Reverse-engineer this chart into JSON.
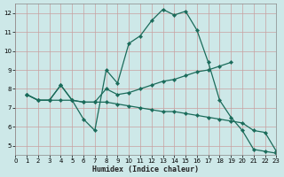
{
  "xlabel": "Humidex (Indice chaleur)",
  "bg_color": "#cde8e8",
  "grid_color": "#c8a0a0",
  "line_color": "#1a6b5a",
  "xlim": [
    0,
    23
  ],
  "ylim": [
    4.5,
    12.5
  ],
  "xticks": [
    0,
    1,
    2,
    3,
    4,
    5,
    6,
    7,
    8,
    9,
    10,
    11,
    12,
    13,
    14,
    15,
    16,
    17,
    18,
    19,
    20,
    21,
    22,
    23
  ],
  "yticks": [
    5,
    6,
    7,
    8,
    9,
    10,
    11,
    12
  ],
  "curve1": {
    "x": [
      1,
      2,
      3,
      4,
      5,
      6,
      7,
      8,
      9,
      10,
      11,
      12,
      13,
      14,
      15,
      16,
      17,
      18,
      19,
      20,
      21,
      22,
      23
    ],
    "y": [
      7.7,
      7.4,
      7.4,
      8.2,
      7.4,
      6.4,
      5.8,
      9.0,
      8.3,
      10.4,
      10.8,
      11.6,
      12.2,
      11.9,
      12.1,
      11.1,
      9.4,
      7.4,
      6.5,
      5.8,
      4.8,
      4.7,
      4.6
    ]
  },
  "curve2": {
    "x": [
      1,
      2,
      3,
      4,
      5,
      6,
      7,
      8,
      9,
      10,
      11,
      12,
      13,
      14,
      15,
      16,
      17,
      18,
      19
    ],
    "y": [
      7.7,
      7.4,
      7.4,
      8.2,
      7.4,
      7.3,
      7.3,
      8.0,
      7.7,
      7.8,
      8.0,
      8.2,
      8.4,
      8.5,
      8.7,
      8.9,
      9.0,
      9.2,
      9.4
    ]
  },
  "curve3": {
    "x": [
      1,
      2,
      3,
      4,
      5,
      6,
      7,
      8,
      9,
      10,
      11,
      12,
      13,
      14,
      15,
      16,
      17,
      18,
      19,
      20,
      21,
      22,
      23
    ],
    "y": [
      7.7,
      7.4,
      7.4,
      7.4,
      7.4,
      7.3,
      7.3,
      7.3,
      7.2,
      7.1,
      7.0,
      6.9,
      6.8,
      6.8,
      6.7,
      6.6,
      6.5,
      6.4,
      6.3,
      6.2,
      5.8,
      5.7,
      4.7
    ]
  }
}
